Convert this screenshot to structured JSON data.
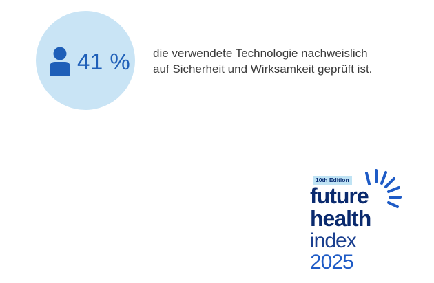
{
  "stat": {
    "value": "41 %",
    "icon": "person-icon",
    "text_lines": [
      "die verwendete Technologie nachweislich",
      "auf Sicherheit und Wirksamkeit geprüft ist."
    ]
  },
  "logo": {
    "edition": "10th Edition",
    "line1": "future",
    "line2": "health",
    "line3": "index",
    "line4": "2025",
    "icon": "sunburst-icon"
  },
  "colors": {
    "circle": "#c9e4f5",
    "accent_blue": "#1f5fb8",
    "navy": "#0a2a6e",
    "badge": "#bfe3f4",
    "body_text": "#3a3a3a"
  }
}
